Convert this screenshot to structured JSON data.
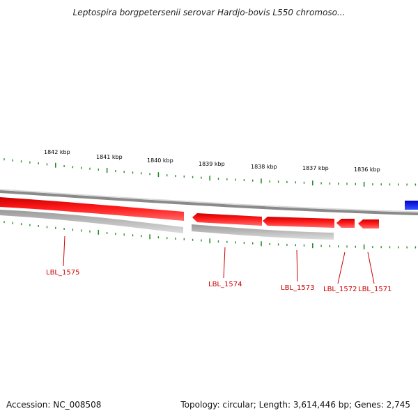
{
  "title": "Leptospira borgpetersenii serovar Hardjo-bovis L550 chromoso...",
  "footer": {
    "accession": "Accession: NC_008508",
    "summary": "Topology: circular; Length: 3,614,446 bp; Genes: 2,745"
  },
  "ticks": [
    {
      "label": "1842 kbp"
    },
    {
      "label": "1841 kbp"
    },
    {
      "label": "1840 kbp"
    },
    {
      "label": "1839 kbp"
    },
    {
      "label": "1838 kbp"
    },
    {
      "label": "1837 kbp"
    },
    {
      "label": "1836 kbp"
    }
  ],
  "genes": [
    {
      "label": "LBL_1575"
    },
    {
      "label": "LBL_1574"
    },
    {
      "label": "LBL_1573"
    },
    {
      "label": "LBL_1572"
    },
    {
      "label": "LBL_1571"
    }
  ],
  "colors": {
    "gene_forward": "#ee0000",
    "gene_label": "#cc0000",
    "track_backbone": "#888888",
    "track_shadow": "#bbbbbb",
    "tick_marks": "#2a8a2a",
    "other_feature": "#0000ee"
  }
}
